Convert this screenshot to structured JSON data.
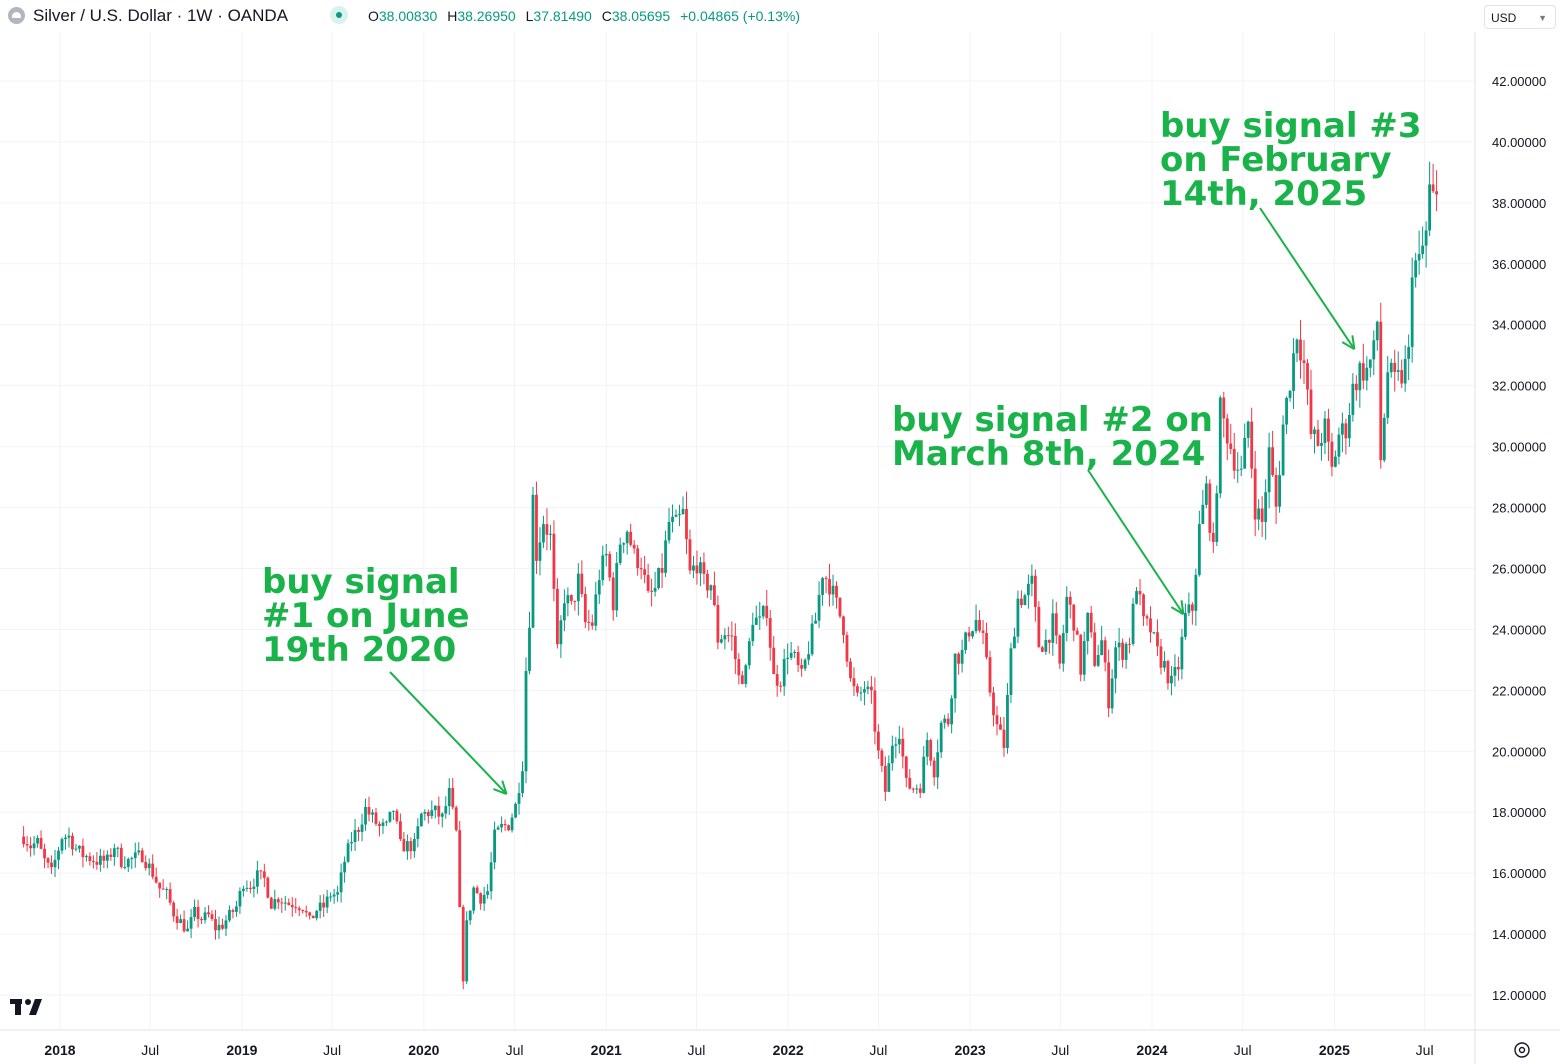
{
  "header": {
    "title": "Silver / U.S. Dollar · 1W · OANDA",
    "ohlc": {
      "o_label": "O",
      "o_value": "38.00830",
      "h_label": "H",
      "h_value": "38.26950",
      "l_label": "L",
      "l_value": "37.81490",
      "c_label": "C",
      "c_value": "38.05695",
      "change": "+0.04865 (+0.13%)"
    },
    "currency": "USD"
  },
  "annotations": [
    {
      "text": "buy signal\n#1 on June\n19th 2020",
      "date": "2020-06-19",
      "price": 18.4
    },
    {
      "text": "buy signal #2 on\nMarch 8th, 2024",
      "date": "2024-03-08",
      "price": 24.3
    },
    {
      "text": "buy signal #3\non February\n14th, 2025",
      "date": "2025-02-14",
      "price": 33.0
    }
  ],
  "icons": {
    "logo": "tradingview-logo-icon",
    "settings": "settings-gear-icon"
  },
  "colors": {
    "up": "#089981",
    "down": "#f23645",
    "annotation": "#19b34a",
    "grid": "#f0f3fa"
  },
  "chart_data": {
    "type": "candlestick",
    "title": "Silver / U.S. Dollar · 1W · OANDA",
    "interval": "1W",
    "ylim": [
      11.0,
      43.5
    ],
    "y_ticks": [
      "42.00000",
      "40.00000",
      "38.00000",
      "36.00000",
      "34.00000",
      "32.00000",
      "30.00000",
      "28.00000",
      "26.00000",
      "24.00000",
      "22.00000",
      "20.00000",
      "18.00000",
      "16.00000",
      "14.00000",
      "12.00000"
    ],
    "x_ticks": [
      {
        "label": "2018",
        "date": "2018-01-01",
        "bold": true
      },
      {
        "label": "Jul",
        "date": "2018-07-01",
        "bold": false
      },
      {
        "label": "2019",
        "date": "2019-01-01",
        "bold": true
      },
      {
        "label": "Jul",
        "date": "2019-07-01",
        "bold": false
      },
      {
        "label": "2020",
        "date": "2020-01-01",
        "bold": true
      },
      {
        "label": "Jul",
        "date": "2020-07-01",
        "bold": false
      },
      {
        "label": "2021",
        "date": "2021-01-01",
        "bold": true
      },
      {
        "label": "Jul",
        "date": "2021-07-01",
        "bold": false
      },
      {
        "label": "2022",
        "date": "2022-01-01",
        "bold": true
      },
      {
        "label": "Jul",
        "date": "2022-07-01",
        "bold": false
      },
      {
        "label": "2023",
        "date": "2023-01-01",
        "bold": true
      },
      {
        "label": "Jul",
        "date": "2023-07-01",
        "bold": false
      },
      {
        "label": "2024",
        "date": "2024-01-01",
        "bold": true
      },
      {
        "label": "Jul",
        "date": "2024-07-01",
        "bold": false
      },
      {
        "label": "2025",
        "date": "2025-01-01",
        "bold": true
      },
      {
        "label": "Jul",
        "date": "2025-07-01",
        "bold": false
      }
    ],
    "weekly_close": [
      [
        "2017-10-20",
        17.2
      ],
      [
        "2017-11-03",
        16.9
      ],
      [
        "2017-11-17",
        17.0
      ],
      [
        "2017-12-01",
        16.4
      ],
      [
        "2017-12-15",
        16.0
      ],
      [
        "2018-01-05",
        17.2
      ],
      [
        "2018-01-19",
        17.2
      ],
      [
        "2018-02-02",
        16.8
      ],
      [
        "2018-02-16",
        16.6
      ],
      [
        "2018-03-02",
        16.5
      ],
      [
        "2018-03-16",
        16.4
      ],
      [
        "2018-04-06",
        16.4
      ],
      [
        "2018-04-20",
        16.9
      ],
      [
        "2018-05-04",
        16.4
      ],
      [
        "2018-05-18",
        16.4
      ],
      [
        "2018-06-01",
        16.5
      ],
      [
        "2018-06-15",
        16.6
      ],
      [
        "2018-07-06",
        16.0
      ],
      [
        "2018-07-20",
        15.5
      ],
      [
        "2018-08-03",
        15.3
      ],
      [
        "2018-08-17",
        14.7
      ],
      [
        "2018-08-31",
        14.4
      ],
      [
        "2018-09-14",
        14.1
      ],
      [
        "2018-09-28",
        14.7
      ],
      [
        "2018-10-12",
        14.5
      ],
      [
        "2018-10-26",
        14.6
      ],
      [
        "2018-11-09",
        14.2
      ],
      [
        "2018-11-23",
        14.3
      ],
      [
        "2018-12-07",
        14.6
      ],
      [
        "2018-12-21",
        14.9
      ],
      [
        "2019-01-04",
        15.7
      ],
      [
        "2019-01-18",
        15.6
      ],
      [
        "2019-02-01",
        15.9
      ],
      [
        "2019-02-15",
        15.8
      ],
      [
        "2019-03-01",
        15.0
      ],
      [
        "2019-03-15",
        15.2
      ],
      [
        "2019-04-05",
        15.0
      ],
      [
        "2019-04-19",
        15.0
      ],
      [
        "2019-05-03",
        14.9
      ],
      [
        "2019-05-17",
        14.4
      ],
      [
        "2019-05-31",
        14.8
      ],
      [
        "2019-06-14",
        14.9
      ],
      [
        "2019-06-28",
        15.3
      ],
      [
        "2019-07-12",
        15.3
      ],
      [
        "2019-07-26",
        16.4
      ],
      [
        "2019-08-09",
        17.1
      ],
      [
        "2019-08-23",
        17.5
      ],
      [
        "2019-09-06",
        18.1
      ],
      [
        "2019-09-20",
        17.8
      ],
      [
        "2019-10-04",
        17.5
      ],
      [
        "2019-10-18",
        17.5
      ],
      [
        "2019-11-01",
        18.1
      ],
      [
        "2019-11-15",
        16.9
      ],
      [
        "2019-11-29",
        16.9
      ],
      [
        "2019-12-13",
        16.9
      ],
      [
        "2019-12-27",
        17.9
      ],
      [
        "2020-01-10",
        18.0
      ],
      [
        "2020-01-24",
        18.0
      ],
      [
        "2020-02-07",
        17.8
      ],
      [
        "2020-02-21",
        18.6
      ],
      [
        "2020-03-06",
        17.3
      ],
      [
        "2020-03-13",
        14.7
      ],
      [
        "2020-03-20",
        12.6
      ],
      [
        "2020-03-27",
        14.3
      ],
      [
        "2020-04-10",
        15.5
      ],
      [
        "2020-04-24",
        15.2
      ],
      [
        "2020-05-08",
        15.4
      ],
      [
        "2020-05-22",
        17.2
      ],
      [
        "2020-06-05",
        17.5
      ],
      [
        "2020-06-19",
        17.6
      ],
      [
        "2020-07-03",
        18.2
      ],
      [
        "2020-07-17",
        19.6
      ],
      [
        "2020-07-24",
        22.7
      ],
      [
        "2020-07-31",
        24.4
      ],
      [
        "2020-08-07",
        28.3
      ],
      [
        "2020-08-14",
        26.5
      ],
      [
        "2020-08-28",
        27.6
      ],
      [
        "2020-09-11",
        27.0
      ],
      [
        "2020-09-25",
        23.2
      ],
      [
        "2020-10-09",
        25.1
      ],
      [
        "2020-10-23",
        24.7
      ],
      [
        "2020-11-06",
        25.6
      ],
      [
        "2020-11-20",
        24.2
      ],
      [
        "2020-12-04",
        24.2
      ],
      [
        "2020-12-18",
        25.8
      ],
      [
        "2021-01-01",
        26.4
      ],
      [
        "2021-01-15",
        24.9
      ],
      [
        "2021-01-29",
        26.9
      ],
      [
        "2021-02-12",
        27.3
      ],
      [
        "2021-02-26",
        26.4
      ],
      [
        "2021-03-12",
        26.2
      ],
      [
        "2021-03-26",
        25.0
      ],
      [
        "2021-04-09",
        25.3
      ],
      [
        "2021-04-23",
        26.0
      ],
      [
        "2021-05-07",
        27.5
      ],
      [
        "2021-05-21",
        27.4
      ],
      [
        "2021-06-04",
        27.8
      ],
      [
        "2021-06-18",
        25.8
      ],
      [
        "2021-07-02",
        26.2
      ],
      [
        "2021-07-16",
        25.5
      ],
      [
        "2021-07-30",
        25.5
      ],
      [
        "2021-08-13",
        23.7
      ],
      [
        "2021-08-27",
        23.9
      ],
      [
        "2021-09-10",
        23.7
      ],
      [
        "2021-09-24",
        22.4
      ],
      [
        "2021-10-08",
        22.6
      ],
      [
        "2021-10-22",
        24.4
      ],
      [
        "2021-11-05",
        24.2
      ],
      [
        "2021-11-19",
        24.7
      ],
      [
        "2021-12-03",
        22.4
      ],
      [
        "2021-12-17",
        22.4
      ],
      [
        "2021-12-31",
        23.3
      ],
      [
        "2022-01-14",
        23.0
      ],
      [
        "2022-01-28",
        22.4
      ],
      [
        "2022-02-11",
        23.4
      ],
      [
        "2022-02-25",
        24.3
      ],
      [
        "2022-03-11",
        25.9
      ],
      [
        "2022-03-25",
        25.5
      ],
      [
        "2022-04-08",
        24.8
      ],
      [
        "2022-04-22",
        24.1
      ],
      [
        "2022-05-06",
        22.3
      ],
      [
        "2022-05-20",
        21.7
      ],
      [
        "2022-06-03",
        22.1
      ],
      [
        "2022-06-17",
        21.7
      ],
      [
        "2022-07-01",
        19.9
      ],
      [
        "2022-07-15",
        18.7
      ],
      [
        "2022-07-29",
        20.3
      ],
      [
        "2022-08-12",
        20.7
      ],
      [
        "2022-08-26",
        18.9
      ],
      [
        "2022-09-09",
        18.8
      ],
      [
        "2022-09-23",
        18.9
      ],
      [
        "2022-10-07",
        20.4
      ],
      [
        "2022-10-21",
        19.4
      ],
      [
        "2022-11-04",
        20.9
      ],
      [
        "2022-11-18",
        21.0
      ],
      [
        "2022-12-02",
        23.1
      ],
      [
        "2022-12-16",
        23.2
      ],
      [
        "2022-12-30",
        24.0
      ],
      [
        "2023-01-13",
        24.3
      ],
      [
        "2023-01-27",
        23.6
      ],
      [
        "2023-02-10",
        22.0
      ],
      [
        "2023-02-24",
        20.8
      ],
      [
        "2023-03-10",
        20.2
      ],
      [
        "2023-03-24",
        23.2
      ],
      [
        "2023-04-07",
        25.0
      ],
      [
        "2023-04-21",
        25.1
      ],
      [
        "2023-05-05",
        25.5
      ],
      [
        "2023-05-19",
        23.5
      ],
      [
        "2023-06-02",
        23.6
      ],
      [
        "2023-06-16",
        24.2
      ],
      [
        "2023-06-30",
        22.8
      ],
      [
        "2023-07-14",
        25.0
      ],
      [
        "2023-07-28",
        24.3
      ],
      [
        "2023-08-11",
        22.7
      ],
      [
        "2023-08-25",
        24.3
      ],
      [
        "2023-09-08",
        23.0
      ],
      [
        "2023-09-22",
        23.6
      ],
      [
        "2023-10-06",
        21.7
      ],
      [
        "2023-10-20",
        23.4
      ],
      [
        "2023-11-03",
        23.3
      ],
      [
        "2023-11-17",
        23.7
      ],
      [
        "2023-12-01",
        25.5
      ],
      [
        "2023-12-15",
        24.2
      ],
      [
        "2023-12-29",
        24.0
      ],
      [
        "2024-01-12",
        23.2
      ],
      [
        "2024-01-26",
        22.8
      ],
      [
        "2024-02-09",
        22.2
      ],
      [
        "2024-02-23",
        22.8
      ],
      [
        "2024-03-08",
        24.4
      ],
      [
        "2024-03-22",
        24.7
      ],
      [
        "2024-04-05",
        27.3
      ],
      [
        "2024-04-19",
        28.6
      ],
      [
        "2024-05-03",
        26.5
      ],
      [
        "2024-05-17",
        31.2
      ],
      [
        "2024-05-31",
        30.4
      ],
      [
        "2024-06-14",
        29.6
      ],
      [
        "2024-06-28",
        29.1
      ],
      [
        "2024-07-12",
        30.8
      ],
      [
        "2024-07-26",
        28.0
      ],
      [
        "2024-08-09",
        27.5
      ],
      [
        "2024-08-23",
        29.8
      ],
      [
        "2024-09-06",
        28.0
      ],
      [
        "2024-09-20",
        30.7
      ],
      [
        "2024-10-04",
        32.2
      ],
      [
        "2024-10-18",
        33.8
      ],
      [
        "2024-11-01",
        32.7
      ],
      [
        "2024-11-15",
        30.4
      ],
      [
        "2024-11-29",
        30.1
      ],
      [
        "2024-12-13",
        30.6
      ],
      [
        "2024-12-27",
        29.2
      ],
      [
        "2025-01-10",
        30.4
      ],
      [
        "2025-01-24",
        30.6
      ],
      [
        "2025-02-07",
        31.9
      ],
      [
        "2025-02-21",
        32.5
      ],
      [
        "2025-03-07",
        32.5
      ],
      [
        "2025-03-21",
        33.1
      ],
      [
        "2025-03-28",
        34.1
      ],
      [
        "2025-04-04",
        29.6
      ],
      [
        "2025-04-18",
        32.5
      ],
      [
        "2025-05-02",
        32.1
      ],
      [
        "2025-05-16",
        32.3
      ],
      [
        "2025-05-30",
        33.0
      ],
      [
        "2025-06-06",
        36.0
      ],
      [
        "2025-06-20",
        36.0
      ],
      [
        "2025-07-04",
        37.0
      ],
      [
        "2025-07-11",
        38.4
      ],
      [
        "2025-07-18",
        38.1
      ],
      [
        "2025-07-25",
        38.06
      ]
    ]
  }
}
